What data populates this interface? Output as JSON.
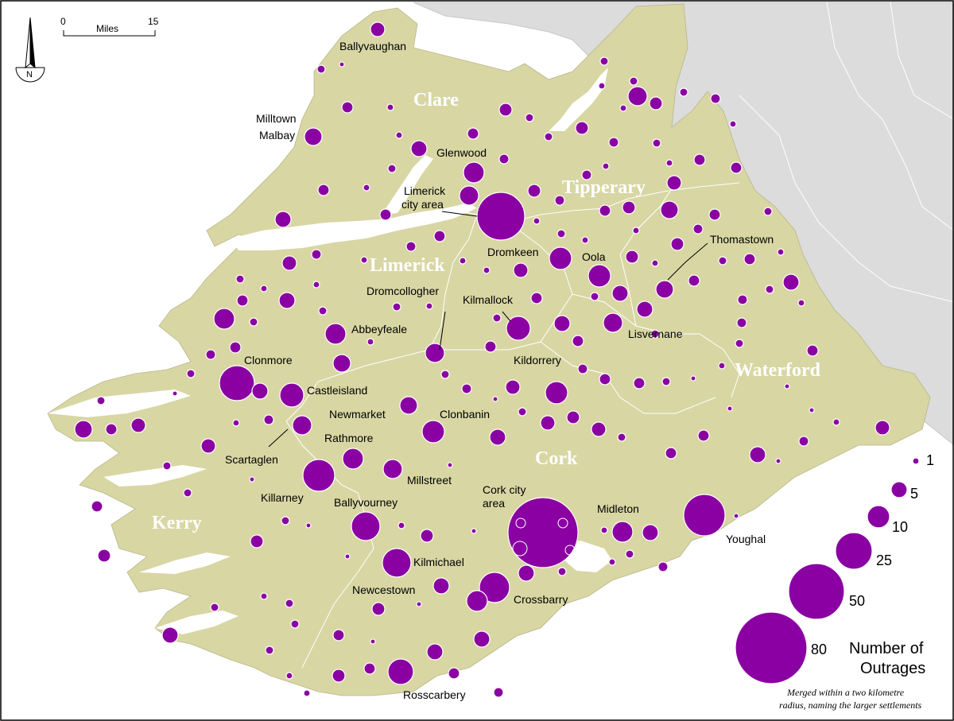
{
  "scale_bar": {
    "start": "0",
    "end": "15",
    "unit": "Miles"
  },
  "north_arrow": {
    "letter": "N",
    "icon": "north-arrow-icon"
  },
  "colors": {
    "land": "#d8d6a3",
    "outside_land": "#dcdcdc",
    "sea": "#ffffff",
    "dot": "#8a00a3",
    "county_label": "#ffffff"
  },
  "counties": [
    {
      "name": "Clare"
    },
    {
      "name": "Tipperary"
    },
    {
      "name": "Limerick"
    },
    {
      "name": "Waterford"
    },
    {
      "name": "Cork"
    },
    {
      "name": "Kerry"
    }
  ],
  "settlements": [
    {
      "label": "Ballyvaughan"
    },
    {
      "label": "Milltown"
    },
    {
      "label": "Malbay"
    },
    {
      "label": "Glenwood"
    },
    {
      "label": "Limerick"
    },
    {
      "label": "city area"
    },
    {
      "label": "Thomastown"
    },
    {
      "label": "Dromkeen"
    },
    {
      "label": "Oola"
    },
    {
      "label": "Dromcollogher"
    },
    {
      "label": "Kilmallock"
    },
    {
      "label": "Abbeyfeale"
    },
    {
      "label": "Lisvernane"
    },
    {
      "label": "Clonmore"
    },
    {
      "label": "Kildorrery"
    },
    {
      "label": "Castleisland"
    },
    {
      "label": "Newmarket"
    },
    {
      "label": "Clonbanin"
    },
    {
      "label": "Rathmore"
    },
    {
      "label": "Scartaglen"
    },
    {
      "label": "Millstreet"
    },
    {
      "label": "Killarney"
    },
    {
      "label": "Ballyvourney"
    },
    {
      "label": "Cork city"
    },
    {
      "label": "area"
    },
    {
      "label": "Midleton"
    },
    {
      "label": "Youghal"
    },
    {
      "label": "Kilmichael"
    },
    {
      "label": "Newcestown"
    },
    {
      "label": "Crossbarry"
    },
    {
      "label": "Rosscarbery"
    }
  ],
  "legend": {
    "values": [
      "1",
      "5",
      "10",
      "25",
      "50",
      "80"
    ],
    "title_line1": "Number of",
    "title_line2": "Outrages"
  },
  "note": {
    "line1": "Merged within a two kilometre",
    "line2": "radius, naming the larger settlements"
  }
}
